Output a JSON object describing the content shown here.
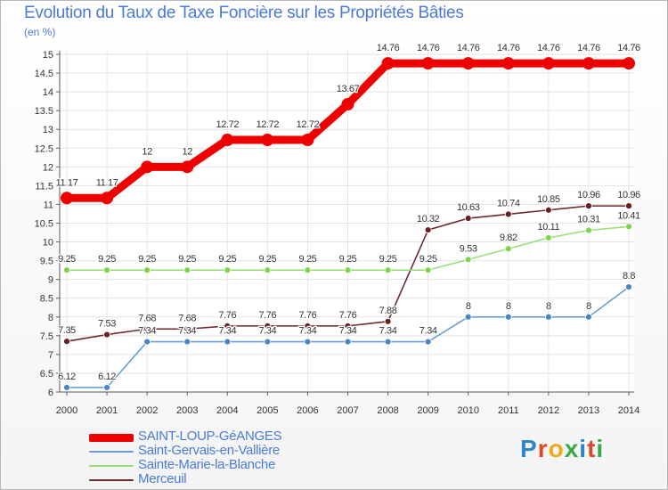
{
  "title": "Evolution du Taux de Taxe Foncière sur les Propriétés Bâties",
  "subtitle": "(en %)",
  "brand": {
    "text": "Proxiti",
    "colors": [
      "#2e86c8",
      "#d84a2a",
      "#f2a81d",
      "#3aa84a",
      "#2e86c8",
      "#d84a2a",
      "#3aa84a"
    ]
  },
  "chart_data": {
    "type": "line",
    "title": "Evolution du Taux de Taxe Foncière sur les Propriétés Bâties",
    "ylabel": "(en %)",
    "xlabel": "",
    "categories": [
      "2000",
      "2001",
      "2002",
      "2003",
      "2004",
      "2005",
      "2006",
      "2007",
      "2008",
      "2009",
      "2010",
      "2011",
      "2012",
      "2013",
      "2014"
    ],
    "ylim": [
      6,
      15
    ],
    "yticks": [
      "6",
      "6.5",
      "7",
      "7.5",
      "8",
      "8.5",
      "9",
      "9.5",
      "10",
      "10.5",
      "11",
      "11.5",
      "12",
      "12.5",
      "13",
      "13.5",
      "14",
      "14.5",
      "15"
    ],
    "grid": true,
    "legend_position": "bottom-left",
    "series": [
      {
        "name": "SAINT-LOUP-GéANGES",
        "color": "#ee0000",
        "marker_color": "#ee0000",
        "values": [
          11.17,
          11.17,
          12,
          12,
          12.72,
          12.72,
          12.72,
          13.67,
          14.76,
          14.76,
          14.76,
          14.76,
          14.76,
          14.76,
          14.76
        ],
        "labels": [
          "11.17",
          "11.17",
          "12",
          "12",
          "12.72",
          "12.72",
          "12.72",
          "13.67",
          "14.76",
          "14.76",
          "14.76",
          "14.76",
          "14.76",
          "14.76",
          "14.76"
        ]
      },
      {
        "name": "Saint-Gervais-en-Vallière",
        "color": "#6a9ed2",
        "marker_color": "#4a86c6",
        "values": [
          6.12,
          6.12,
          7.34,
          7.34,
          7.34,
          7.34,
          7.34,
          7.34,
          7.34,
          7.34,
          8,
          8,
          8,
          8,
          8.8
        ],
        "labels": [
          "6.12",
          "6.12",
          "7.34",
          "7.34",
          "7.34",
          "7.34",
          "7.34",
          "7.34",
          "7.34",
          "7.34",
          "8",
          "8",
          "8",
          "8",
          "8.8"
        ]
      },
      {
        "name": "Sainte-Marie-la-Blanche",
        "color": "#9ae07a",
        "marker_color": "#7fd44f",
        "values": [
          9.25,
          9.25,
          9.25,
          9.25,
          9.25,
          9.25,
          9.25,
          9.25,
          9.25,
          9.25,
          9.53,
          9.82,
          10.11,
          10.31,
          10.41
        ],
        "labels": [
          "9.25",
          "9.25",
          "9.25",
          "9.25",
          "9.25",
          "9.25",
          "9.25",
          "9.25",
          "9.25",
          "9.25",
          "9.53",
          "9.82",
          "10.11",
          "10.31",
          "10.41"
        ]
      },
      {
        "name": "Merceuil",
        "color": "#6b2a2e",
        "marker_color": "#6b1f24",
        "values": [
          7.35,
          7.53,
          7.68,
          7.68,
          7.76,
          7.76,
          7.76,
          7.76,
          7.88,
          10.32,
          10.63,
          10.74,
          10.85,
          10.96,
          10.96
        ],
        "labels": [
          "7.35",
          "7.53",
          "7.68",
          "7.68",
          "7.76",
          "7.76",
          "7.76",
          "7.76",
          "7.88",
          "10.32",
          "10.63",
          "10.74",
          "10.85",
          "10.96",
          "10.96"
        ]
      }
    ]
  }
}
